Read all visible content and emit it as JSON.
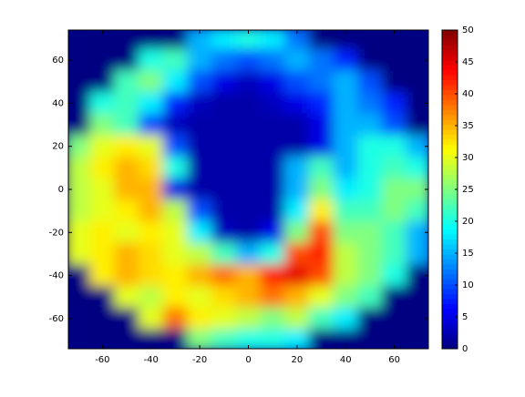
{
  "chart_data": {
    "type": "heatmap",
    "colormap": "jet",
    "x": [
      -70,
      -60,
      -50,
      -40,
      -30,
      -20,
      -10,
      0,
      10,
      20,
      30,
      40,
      50,
      60,
      70
    ],
    "y": [
      70,
      60,
      50,
      40,
      30,
      20,
      10,
      0,
      -10,
      -20,
      -30,
      -40,
      -50,
      -60,
      -70
    ],
    "values": [
      [
        0,
        0,
        0,
        0,
        0,
        15,
        18,
        20,
        18,
        12,
        0,
        0,
        0,
        0,
        0
      ],
      [
        0,
        0,
        0,
        20,
        22,
        15,
        12,
        10,
        12,
        15,
        12,
        8,
        0,
        0,
        0
      ],
      [
        0,
        0,
        22,
        25,
        18,
        10,
        5,
        3,
        5,
        10,
        12,
        15,
        10,
        0,
        0
      ],
      [
        0,
        20,
        22,
        18,
        8,
        3,
        2,
        2,
        3,
        5,
        8,
        15,
        12,
        8,
        0
      ],
      [
        0,
        25,
        22,
        10,
        3,
        2,
        2,
        2,
        2,
        2,
        5,
        15,
        15,
        10,
        0
      ],
      [
        25,
        30,
        32,
        30,
        10,
        2,
        2,
        2,
        2,
        2,
        5,
        15,
        20,
        20,
        15
      ],
      [
        28,
        32,
        35,
        33,
        20,
        2,
        2,
        2,
        2,
        15,
        22,
        15,
        20,
        22,
        20
      ],
      [
        28,
        30,
        35,
        35,
        5,
        2,
        2,
        2,
        2,
        15,
        25,
        18,
        20,
        25,
        25
      ],
      [
        28,
        30,
        32,
        35,
        28,
        10,
        2,
        2,
        2,
        18,
        32,
        22,
        22,
        25,
        22
      ],
      [
        30,
        32,
        30,
        32,
        30,
        18,
        3,
        2,
        5,
        25,
        40,
        25,
        25,
        22,
        15
      ],
      [
        30,
        32,
        35,
        33,
        30,
        28,
        22,
        15,
        20,
        40,
        42,
        28,
        25,
        22,
        15
      ],
      [
        0,
        32,
        35,
        33,
        32,
        35,
        38,
        35,
        42,
        45,
        40,
        28,
        25,
        20,
        0
      ],
      [
        0,
        0,
        30,
        28,
        32,
        30,
        33,
        35,
        38,
        35,
        30,
        25,
        22,
        0,
        0
      ],
      [
        0,
        0,
        0,
        30,
        38,
        32,
        30,
        28,
        25,
        28,
        22,
        18,
        0,
        0,
        0
      ],
      [
        0,
        0,
        0,
        0,
        0,
        25,
        22,
        20,
        20,
        18,
        0,
        0,
        0,
        0,
        0
      ]
    ],
    "xlim": [
      -74,
      74
    ],
    "ylim": [
      -74,
      74
    ],
    "xticks": [
      -60,
      -40,
      -20,
      0,
      20,
      40,
      60
    ],
    "yticks": [
      -60,
      -40,
      -20,
      0,
      20,
      40,
      60
    ],
    "clim": [
      0,
      50
    ],
    "cticks": [
      0,
      5,
      10,
      15,
      20,
      25,
      30,
      35,
      40,
      45,
      50
    ]
  }
}
